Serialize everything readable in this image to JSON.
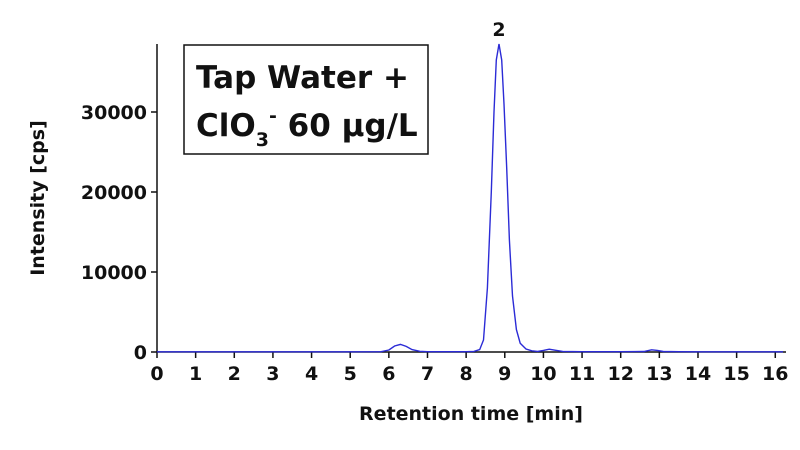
{
  "chart_data": {
    "type": "line",
    "title": "",
    "xlabel": "Retention time [min]",
    "ylabel": "Intensity [cps]",
    "xlim": [
      0,
      16.2
    ],
    "ylim": [
      0,
      38500
    ],
    "x_ticks": [
      0,
      1,
      2,
      3,
      4,
      5,
      6,
      7,
      8,
      9,
      10,
      11,
      12,
      13,
      14,
      15,
      16
    ],
    "y_ticks": [
      0,
      10000,
      20000,
      30000
    ],
    "grid": false,
    "line_color": "#2b2bd6",
    "annotation_box": {
      "line1": "Tap Water +",
      "line2_main": "ClO",
      "line2_subscript": "3",
      "line2_superscript": "-",
      "line2_rest": " 60 µg/L",
      "placement": "top-left"
    },
    "peak_labels": [
      {
        "text": "2",
        "x": 8.85,
        "y": 38500
      }
    ],
    "series": [
      {
        "values_xy": [
          [
            0,
            30
          ],
          [
            1,
            30
          ],
          [
            2,
            30
          ],
          [
            3,
            30
          ],
          [
            4,
            30
          ],
          [
            5,
            30
          ],
          [
            5.8,
            35
          ],
          [
            6.0,
            250
          ],
          [
            6.15,
            750
          ],
          [
            6.3,
            950
          ],
          [
            6.45,
            700
          ],
          [
            6.6,
            300
          ],
          [
            6.8,
            90
          ],
          [
            7.0,
            40
          ],
          [
            7.5,
            35
          ],
          [
            8.0,
            40
          ],
          [
            8.2,
            80
          ],
          [
            8.35,
            300
          ],
          [
            8.45,
            1500
          ],
          [
            8.55,
            8000
          ],
          [
            8.65,
            20000
          ],
          [
            8.72,
            30000
          ],
          [
            8.78,
            36500
          ],
          [
            8.85,
            38500
          ],
          [
            8.92,
            36500
          ],
          [
            8.98,
            31000
          ],
          [
            9.05,
            23000
          ],
          [
            9.12,
            14000
          ],
          [
            9.2,
            7000
          ],
          [
            9.3,
            2800
          ],
          [
            9.4,
            1100
          ],
          [
            9.55,
            380
          ],
          [
            9.7,
            150
          ],
          [
            9.85,
            80
          ],
          [
            10.0,
            200
          ],
          [
            10.15,
            350
          ],
          [
            10.3,
            220
          ],
          [
            10.5,
            80
          ],
          [
            11,
            40
          ],
          [
            12,
            35
          ],
          [
            12.6,
            60
          ],
          [
            12.8,
            280
          ],
          [
            12.95,
            200
          ],
          [
            13.1,
            60
          ],
          [
            13.5,
            35
          ],
          [
            14,
            30
          ],
          [
            15,
            30
          ],
          [
            16,
            30
          ],
          [
            16.2,
            30
          ]
        ]
      }
    ]
  }
}
